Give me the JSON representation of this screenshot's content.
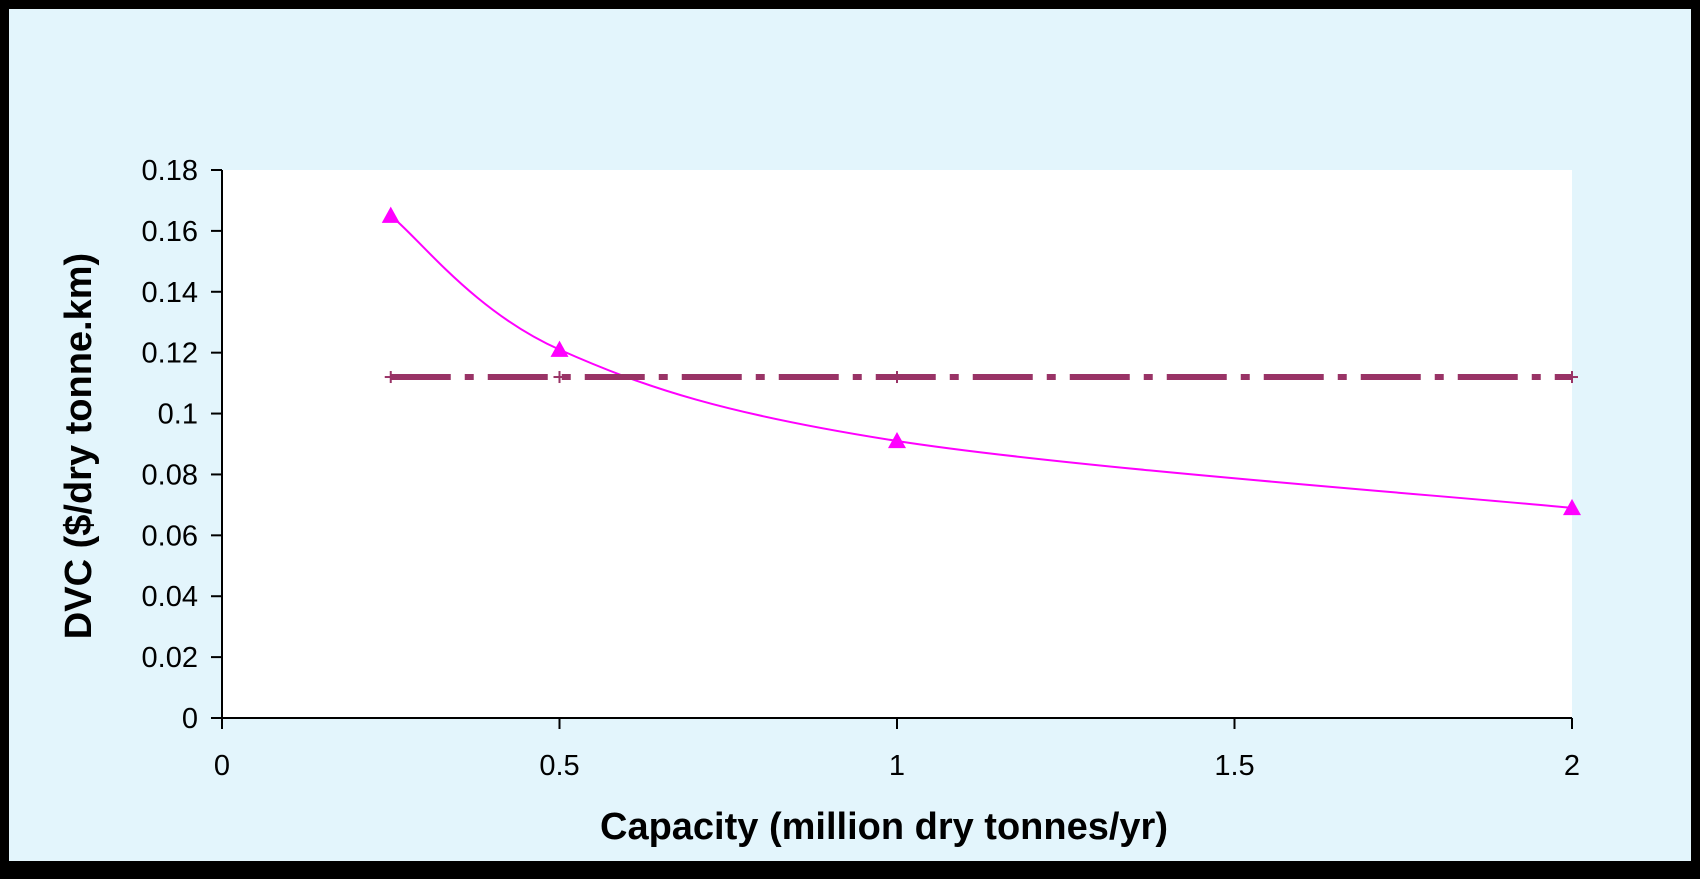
{
  "chart_data": {
    "type": "line",
    "title": "",
    "xlabel": "Capacity (million dry tonnes/yr)",
    "ylabel": "DVC ($/dry tonne.km)",
    "xlim": [
      0,
      2
    ],
    "ylim": [
      0,
      0.18
    ],
    "x_ticks": [
      0,
      0.5,
      1,
      1.5,
      2
    ],
    "x_tick_labels": [
      "0",
      "0.5",
      "1",
      "1.5",
      "2"
    ],
    "y_ticks": [
      0,
      0.02,
      0.04,
      0.06,
      0.08,
      0.1,
      0.12,
      0.14,
      0.16,
      0.18
    ],
    "y_tick_labels": [
      "0",
      "0.02",
      "0.04",
      "0.06",
      "0.08",
      "0.1",
      "0.12",
      "0.14",
      "0.16",
      "0.18"
    ],
    "grid": false,
    "legend": "none",
    "plot_background": "#FFFFFF",
    "chart_background": "#E3F5FC",
    "series": [
      {
        "marker": "triangle",
        "color": "#FF00FF",
        "line_style": "solid-smooth",
        "x": [
          0.25,
          0.5,
          1,
          2
        ],
        "y": [
          0.165,
          0.121,
          0.091,
          0.069
        ]
      },
      {
        "marker": "plus",
        "color": "#993366",
        "line_style": "dash-dot",
        "x": [
          0.25,
          0.5,
          1,
          2
        ],
        "y": [
          0.112,
          0.112,
          0.112,
          0.112
        ]
      }
    ]
  }
}
